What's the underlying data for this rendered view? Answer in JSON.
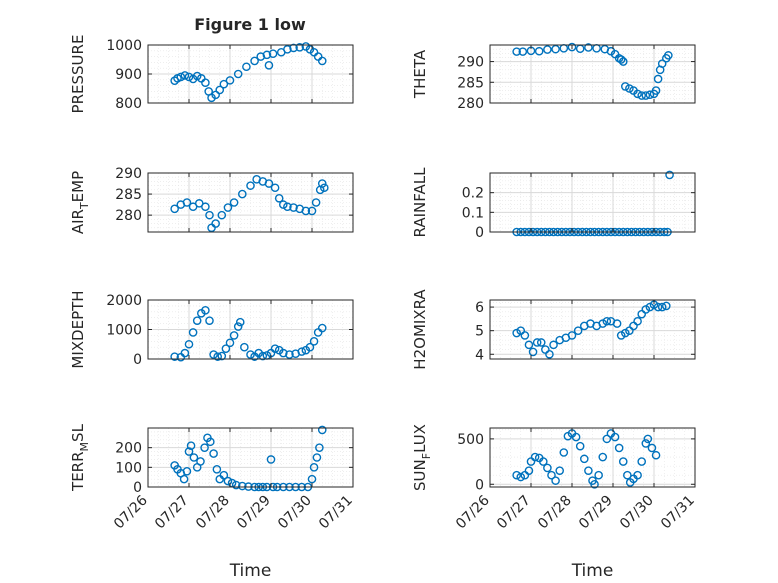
{
  "figure_title": "Figure 1 low",
  "style": {
    "marker_color": "#0072BD",
    "axis_color": "#262626",
    "grid_color": "#d9d9d9"
  },
  "chart_data": [
    {
      "type": "scatter",
      "title": "Figure 1 low",
      "ylabel": "PRESSURE",
      "xlabel": "",
      "ylim": [
        800,
        1000
      ],
      "yticks": [
        800,
        900,
        1000
      ],
      "ytick_labels": [
        "800",
        "900",
        "1000"
      ],
      "xlim": [
        26.0,
        31.0
      ],
      "xticks": [],
      "xtick_labels": [],
      "grid": true,
      "minor_grid": true,
      "points": [
        [
          26.65,
          877
        ],
        [
          26.72,
          885
        ],
        [
          26.8,
          890
        ],
        [
          26.9,
          895
        ],
        [
          27.0,
          890
        ],
        [
          27.1,
          883
        ],
        [
          27.2,
          893
        ],
        [
          27.3,
          885
        ],
        [
          27.4,
          870
        ],
        [
          27.48,
          840
        ],
        [
          27.55,
          818
        ],
        [
          27.65,
          828
        ],
        [
          27.75,
          845
        ],
        [
          27.85,
          865
        ],
        [
          28.0,
          878
        ],
        [
          28.2,
          900
        ],
        [
          28.4,
          925
        ],
        [
          28.6,
          945
        ],
        [
          28.75,
          960
        ],
        [
          28.9,
          966
        ],
        [
          28.95,
          930
        ],
        [
          29.05,
          970
        ],
        [
          29.25,
          975
        ],
        [
          29.4,
          985
        ],
        [
          29.55,
          990
        ],
        [
          29.7,
          992
        ],
        [
          29.85,
          995
        ],
        [
          29.95,
          985
        ],
        [
          30.05,
          975
        ],
        [
          30.15,
          960
        ],
        [
          30.25,
          945
        ]
      ]
    },
    {
      "type": "scatter",
      "title": "",
      "ylabel": "THETA",
      "xlabel": "",
      "ylim": [
        280,
        294
      ],
      "yticks": [
        280,
        285,
        290
      ],
      "ytick_labels": [
        "280",
        "285",
        "290"
      ],
      "xlim": [
        26.0,
        31.0
      ],
      "xticks": [],
      "xtick_labels": [],
      "grid": true,
      "minor_grid": true,
      "points": [
        [
          26.65,
          292.4
        ],
        [
          26.8,
          292.4
        ],
        [
          27.0,
          292.6
        ],
        [
          27.2,
          292.5
        ],
        [
          27.4,
          292.9
        ],
        [
          27.6,
          293.0
        ],
        [
          27.8,
          293.2
        ],
        [
          28.0,
          293.5
        ],
        [
          28.2,
          293.1
        ],
        [
          28.4,
          293.4
        ],
        [
          28.6,
          293.2
        ],
        [
          28.8,
          293.0
        ],
        [
          28.95,
          292.5
        ],
        [
          29.05,
          291.8
        ],
        [
          29.15,
          290.8
        ],
        [
          29.2,
          290.5
        ],
        [
          29.25,
          290.0
        ],
        [
          29.3,
          284.0
        ],
        [
          29.4,
          283.5
        ],
        [
          29.5,
          283.0
        ],
        [
          29.6,
          282.2
        ],
        [
          29.7,
          281.8
        ],
        [
          29.8,
          281.8
        ],
        [
          29.9,
          282.0
        ],
        [
          30.0,
          282.2
        ],
        [
          30.05,
          283.0
        ],
        [
          30.1,
          285.8
        ],
        [
          30.15,
          288.0
        ],
        [
          30.2,
          289.5
        ],
        [
          30.3,
          290.8
        ],
        [
          30.35,
          291.5
        ]
      ]
    },
    {
      "type": "scatter",
      "title": "",
      "ylabel": "AIR_TEMP",
      "xlabel": "",
      "ylim": [
        276,
        290
      ],
      "yticks": [
        280,
        285,
        290
      ],
      "ytick_labels": [
        "280",
        "285",
        "290"
      ],
      "xlim": [
        26.0,
        31.0
      ],
      "xticks": [],
      "xtick_labels": [],
      "grid": true,
      "minor_grid": true,
      "points": [
        [
          26.65,
          281.5
        ],
        [
          26.8,
          282.5
        ],
        [
          26.95,
          283.0
        ],
        [
          27.1,
          282.0
        ],
        [
          27.25,
          282.8
        ],
        [
          27.4,
          282.0
        ],
        [
          27.5,
          280.0
        ],
        [
          27.55,
          277.0
        ],
        [
          27.65,
          278.0
        ],
        [
          27.8,
          280.0
        ],
        [
          27.95,
          281.8
        ],
        [
          28.1,
          283.0
        ],
        [
          28.3,
          285.0
        ],
        [
          28.5,
          287.0
        ],
        [
          28.65,
          288.5
        ],
        [
          28.8,
          288.0
        ],
        [
          28.95,
          287.5
        ],
        [
          29.1,
          286.5
        ],
        [
          29.2,
          284.0
        ],
        [
          29.3,
          282.5
        ],
        [
          29.4,
          282.0
        ],
        [
          29.55,
          281.8
        ],
        [
          29.7,
          281.5
        ],
        [
          29.85,
          281.0
        ],
        [
          30.0,
          281.0
        ],
        [
          30.1,
          283.0
        ],
        [
          30.2,
          286.0
        ],
        [
          30.25,
          287.5
        ],
        [
          30.3,
          286.5
        ]
      ]
    },
    {
      "type": "scatter",
      "title": "",
      "ylabel": "RAINFALL",
      "xlabel": "",
      "ylim": [
        0,
        0.3
      ],
      "yticks": [
        0,
        0.1,
        0.2
      ],
      "ytick_labels": [
        "0",
        "0.1",
        "0.2"
      ],
      "xlim": [
        26.0,
        31.0
      ],
      "xticks": [],
      "xtick_labels": [],
      "grid": true,
      "minor_grid": true,
      "points": [
        [
          26.65,
          0
        ],
        [
          26.75,
          0
        ],
        [
          26.85,
          0
        ],
        [
          26.95,
          0
        ],
        [
          27.05,
          0
        ],
        [
          27.15,
          0
        ],
        [
          27.25,
          0
        ],
        [
          27.35,
          0
        ],
        [
          27.45,
          0
        ],
        [
          27.55,
          0
        ],
        [
          27.65,
          0
        ],
        [
          27.75,
          0
        ],
        [
          27.85,
          0
        ],
        [
          27.95,
          0
        ],
        [
          28.05,
          0
        ],
        [
          28.15,
          0
        ],
        [
          28.25,
          0
        ],
        [
          28.35,
          0
        ],
        [
          28.45,
          0
        ],
        [
          28.55,
          0
        ],
        [
          28.65,
          0
        ],
        [
          28.75,
          0
        ],
        [
          28.85,
          0
        ],
        [
          28.95,
          0
        ],
        [
          29.05,
          0
        ],
        [
          29.15,
          0
        ],
        [
          29.25,
          0
        ],
        [
          29.35,
          0
        ],
        [
          29.45,
          0
        ],
        [
          29.55,
          0
        ],
        [
          29.65,
          0
        ],
        [
          29.75,
          0
        ],
        [
          29.85,
          0
        ],
        [
          29.95,
          0
        ],
        [
          30.05,
          0
        ],
        [
          30.15,
          0
        ],
        [
          30.25,
          0
        ],
        [
          30.33,
          0
        ],
        [
          30.38,
          0.29
        ]
      ]
    },
    {
      "type": "scatter",
      "title": "",
      "ylabel": "MIXDEPTH",
      "xlabel": "",
      "ylim": [
        0,
        2000
      ],
      "yticks": [
        0,
        1000,
        2000
      ],
      "ytick_labels": [
        "0",
        "1000",
        "2000"
      ],
      "xlim": [
        26.0,
        31.0
      ],
      "xticks": [],
      "xtick_labels": [],
      "grid": true,
      "minor_grid": true,
      "points": [
        [
          26.65,
          80
        ],
        [
          26.8,
          60
        ],
        [
          26.9,
          200
        ],
        [
          27.0,
          500
        ],
        [
          27.1,
          900
        ],
        [
          27.2,
          1300
        ],
        [
          27.3,
          1550
        ],
        [
          27.4,
          1650
        ],
        [
          27.5,
          1300
        ],
        [
          27.6,
          150
        ],
        [
          27.7,
          80
        ],
        [
          27.8,
          100
        ],
        [
          27.9,
          350
        ],
        [
          28.0,
          550
        ],
        [
          28.1,
          800
        ],
        [
          28.2,
          1100
        ],
        [
          28.25,
          1250
        ],
        [
          28.35,
          400
        ],
        [
          28.5,
          150
        ],
        [
          28.6,
          80
        ],
        [
          28.7,
          200
        ],
        [
          28.8,
          100
        ],
        [
          28.9,
          120
        ],
        [
          29.0,
          200
        ],
        [
          29.1,
          350
        ],
        [
          29.2,
          300
        ],
        [
          29.3,
          200
        ],
        [
          29.45,
          150
        ],
        [
          29.6,
          180
        ],
        [
          29.75,
          250
        ],
        [
          29.85,
          300
        ],
        [
          29.95,
          400
        ],
        [
          30.05,
          600
        ],
        [
          30.15,
          900
        ],
        [
          30.25,
          1050
        ]
      ]
    },
    {
      "type": "scatter",
      "title": "",
      "ylabel": "H2OMIXRA",
      "xlabel": "",
      "ylim": [
        3.8,
        6.3
      ],
      "yticks": [
        4,
        5,
        6
      ],
      "ytick_labels": [
        "4",
        "5",
        "6"
      ],
      "xlim": [
        26.0,
        31.0
      ],
      "xticks": [],
      "xtick_labels": [],
      "grid": true,
      "minor_grid": true,
      "points": [
        [
          26.65,
          4.9
        ],
        [
          26.75,
          5.0
        ],
        [
          26.85,
          4.8
        ],
        [
          26.95,
          4.4
        ],
        [
          27.05,
          4.1
        ],
        [
          27.15,
          4.5
        ],
        [
          27.25,
          4.5
        ],
        [
          27.35,
          4.2
        ],
        [
          27.45,
          4.0
        ],
        [
          27.55,
          4.4
        ],
        [
          27.7,
          4.6
        ],
        [
          27.85,
          4.7
        ],
        [
          28.0,
          4.8
        ],
        [
          28.15,
          5.0
        ],
        [
          28.3,
          5.2
        ],
        [
          28.45,
          5.3
        ],
        [
          28.6,
          5.2
        ],
        [
          28.75,
          5.3
        ],
        [
          28.85,
          5.4
        ],
        [
          28.95,
          5.4
        ],
        [
          29.1,
          5.3
        ],
        [
          29.2,
          4.8
        ],
        [
          29.3,
          4.9
        ],
        [
          29.4,
          5.0
        ],
        [
          29.5,
          5.2
        ],
        [
          29.6,
          5.4
        ],
        [
          29.7,
          5.7
        ],
        [
          29.8,
          5.9
        ],
        [
          29.9,
          6.0
        ],
        [
          30.0,
          6.1
        ],
        [
          30.1,
          6.0
        ],
        [
          30.2,
          6.0
        ],
        [
          30.3,
          6.05
        ]
      ]
    },
    {
      "type": "scatter",
      "title": "",
      "ylabel": "TERR_MSL",
      "xlabel": "Time",
      "ylim": [
        0,
        300
      ],
      "yticks": [
        0,
        100,
        200
      ],
      "ytick_labels": [
        "0",
        "100",
        "200"
      ],
      "xlim": [
        26.0,
        31.0
      ],
      "xticks": [
        26,
        27,
        28,
        29,
        30,
        31
      ],
      "xtick_labels": [
        "07/26",
        "07/27",
        "07/28",
        "07/29",
        "07/30",
        "07/31"
      ],
      "grid": true,
      "minor_grid": true,
      "points": [
        [
          26.65,
          110
        ],
        [
          26.72,
          90
        ],
        [
          26.8,
          70
        ],
        [
          26.88,
          40
        ],
        [
          26.95,
          80
        ],
        [
          27.0,
          180
        ],
        [
          27.05,
          210
        ],
        [
          27.12,
          150
        ],
        [
          27.2,
          100
        ],
        [
          27.28,
          130
        ],
        [
          27.38,
          200
        ],
        [
          27.45,
          250
        ],
        [
          27.52,
          230
        ],
        [
          27.6,
          170
        ],
        [
          27.68,
          90
        ],
        [
          27.75,
          40
        ],
        [
          27.85,
          60
        ],
        [
          27.95,
          30
        ],
        [
          28.05,
          20
        ],
        [
          28.15,
          10
        ],
        [
          28.3,
          5
        ],
        [
          28.45,
          2
        ],
        [
          28.6,
          0
        ],
        [
          28.7,
          0
        ],
        [
          28.8,
          0
        ],
        [
          28.9,
          0
        ],
        [
          29.0,
          140
        ],
        [
          29.05,
          0
        ],
        [
          29.15,
          0
        ],
        [
          29.3,
          0
        ],
        [
          29.45,
          0
        ],
        [
          29.6,
          0
        ],
        [
          29.75,
          0
        ],
        [
          29.9,
          0
        ],
        [
          30.0,
          40
        ],
        [
          30.05,
          100
        ],
        [
          30.12,
          150
        ],
        [
          30.18,
          200
        ],
        [
          30.25,
          290
        ]
      ]
    },
    {
      "type": "scatter",
      "title": "",
      "ylabel": "SUN_FLUX",
      "xlabel": "Time",
      "ylim": [
        -30,
        620
      ],
      "yticks": [
        0,
        500
      ],
      "ytick_labels": [
        "0",
        "500"
      ],
      "xlim": [
        26.0,
        31.0
      ],
      "xticks": [
        26,
        27,
        28,
        29,
        30,
        31
      ],
      "xtick_labels": [
        "07/26",
        "07/27",
        "07/28",
        "07/29",
        "07/30",
        "07/31"
      ],
      "grid": true,
      "minor_grid": true,
      "points": [
        [
          26.65,
          100
        ],
        [
          26.75,
          80
        ],
        [
          26.85,
          100
        ],
        [
          26.95,
          150
        ],
        [
          27.0,
          250
        ],
        [
          27.1,
          300
        ],
        [
          27.2,
          290
        ],
        [
          27.3,
          250
        ],
        [
          27.4,
          180
        ],
        [
          27.5,
          100
        ],
        [
          27.6,
          40
        ],
        [
          27.7,
          150
        ],
        [
          27.8,
          350
        ],
        [
          27.9,
          530
        ],
        [
          28.0,
          560
        ],
        [
          28.1,
          520
        ],
        [
          28.2,
          420
        ],
        [
          28.3,
          280
        ],
        [
          28.4,
          150
        ],
        [
          28.5,
          40
        ],
        [
          28.55,
          0
        ],
        [
          28.65,
          100
        ],
        [
          28.75,
          300
        ],
        [
          28.85,
          500
        ],
        [
          28.95,
          560
        ],
        [
          29.05,
          520
        ],
        [
          29.15,
          400
        ],
        [
          29.25,
          250
        ],
        [
          29.35,
          100
        ],
        [
          29.42,
          20
        ],
        [
          29.5,
          60
        ],
        [
          29.6,
          100
        ],
        [
          29.7,
          250
        ],
        [
          29.8,
          450
        ],
        [
          29.85,
          500
        ],
        [
          29.95,
          400
        ],
        [
          30.05,
          320
        ]
      ]
    }
  ]
}
